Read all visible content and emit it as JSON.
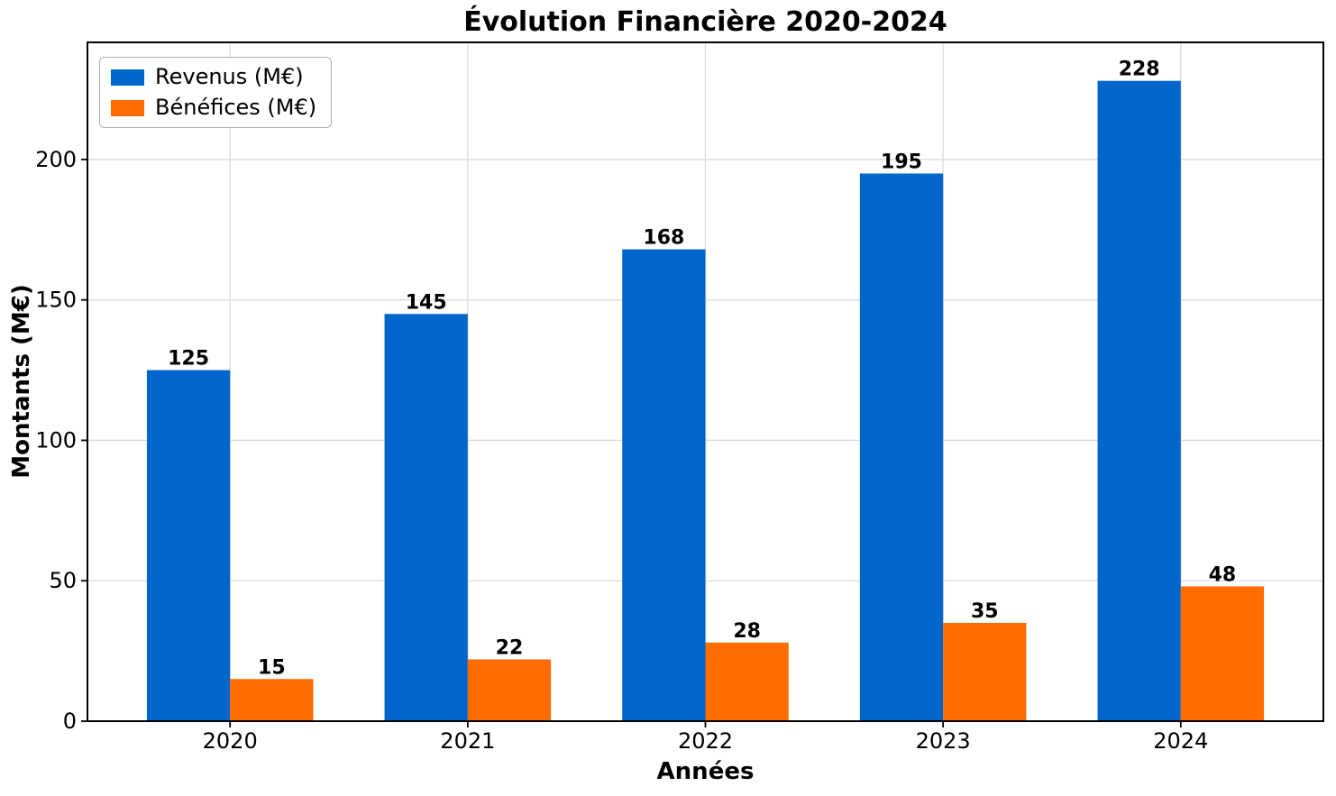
{
  "chart_data": {
    "type": "bar",
    "title": "Évolution Financière 2020-2024",
    "categories": [
      "2020",
      "2021",
      "2022",
      "2023",
      "2024"
    ],
    "series": [
      {
        "name": "Revenus (M€)",
        "color": "#0066CC",
        "values": [
          125,
          145,
          168,
          195,
          228
        ]
      },
      {
        "name": "Bénéfices (M€)",
        "color": "#FF6C00",
        "values": [
          15,
          22,
          28,
          35,
          48
        ]
      }
    ],
    "xlabel": "Années",
    "ylabel": "Montants (M€)",
    "ylim": [
      0,
      241.7
    ],
    "yticks": [
      0,
      50,
      100,
      150,
      200
    ],
    "grid": true,
    "legend_position": "upper left",
    "value_labels": true
  },
  "colors": {
    "revenus": "#0066CC",
    "benefices": "#FF6C00",
    "grid": "#DCDCDC",
    "axis": "#000000",
    "legend_border": "#B0B0B0",
    "background": "#FFFFFF",
    "text": "#000000"
  }
}
